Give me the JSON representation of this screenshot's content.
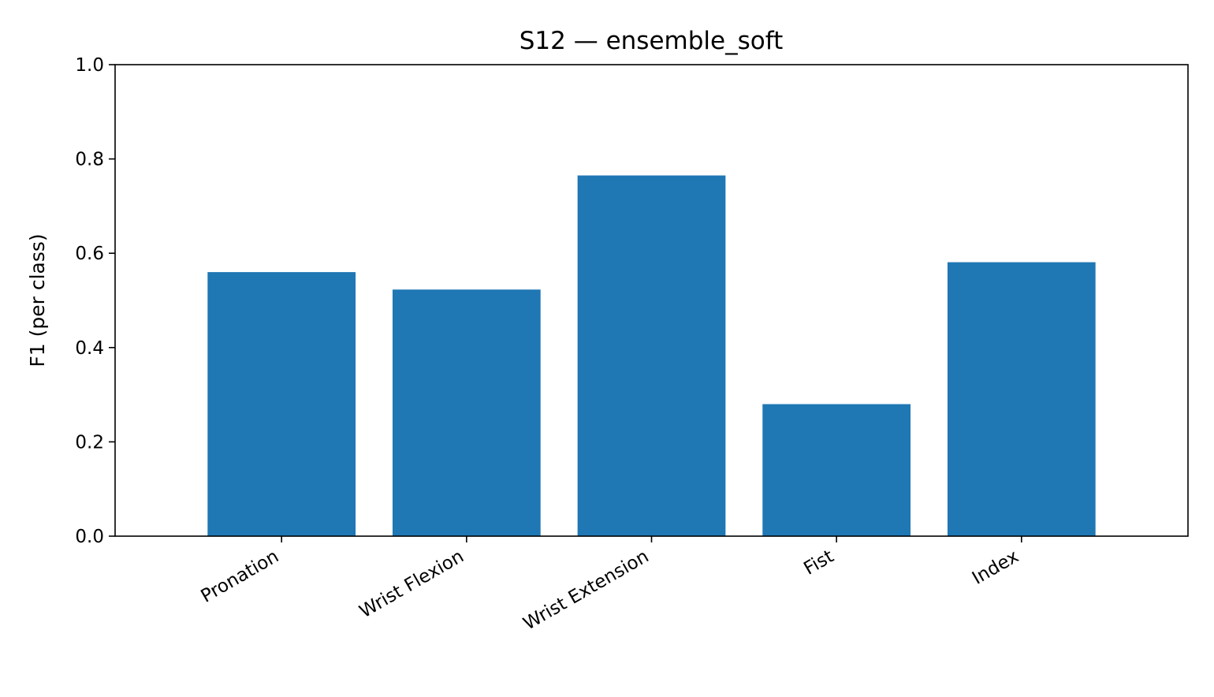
{
  "chart_data": {
    "type": "bar",
    "title": "S12 — ensemble_soft",
    "xlabel": "",
    "ylabel": "F1 (per class)",
    "categories": [
      "Pronation",
      "Wrist Flexion",
      "Wrist Extension",
      "Fist",
      "Index"
    ],
    "values": [
      0.56,
      0.523,
      0.765,
      0.28,
      0.581
    ],
    "ylim": [
      0,
      1
    ],
    "yticks": [
      0.0,
      0.2,
      0.4,
      0.6,
      0.8,
      1.0
    ],
    "ytick_labels": [
      "0.0",
      "0.2",
      "0.4",
      "0.6",
      "0.8",
      "1.0"
    ],
    "grid": false,
    "legend": "none",
    "bar_color": "#1f77b4"
  }
}
